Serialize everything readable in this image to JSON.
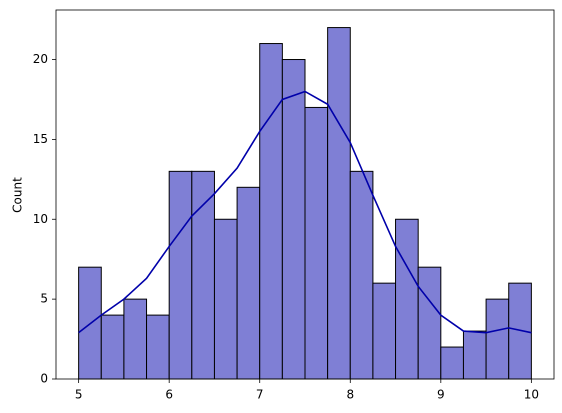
{
  "chart_data": {
    "type": "histogram",
    "y_label": "Count",
    "bins": [
      5.0,
      5.25,
      5.5,
      5.75,
      6.0,
      6.25,
      6.5,
      6.75,
      7.0,
      7.25,
      7.5,
      7.75,
      8.0,
      8.25,
      8.5,
      8.75,
      9.0,
      9.25,
      9.5,
      9.75,
      10.0
    ],
    "values": [
      7,
      4,
      5,
      4,
      13,
      13,
      10,
      12,
      21,
      20,
      17,
      22,
      13,
      6,
      10,
      7,
      2,
      3,
      5,
      6
    ],
    "color": "#7f7fd5",
    "edgecolor": "#000000",
    "kde": {
      "x": [
        5.0,
        5.25,
        5.5,
        5.75,
        6.0,
        6.25,
        6.5,
        6.75,
        7.0,
        7.25,
        7.5,
        7.75,
        8.0,
        8.25,
        8.5,
        8.75,
        9.0,
        9.25,
        9.5,
        9.75,
        10.0
      ],
      "values": [
        2.9,
        4.0,
        5.0,
        6.3,
        8.3,
        10.2,
        11.6,
        13.2,
        15.5,
        17.5,
        18.0,
        17.2,
        14.8,
        11.5,
        8.3,
        5.8,
        4.0,
        3.0,
        2.9,
        3.2,
        2.9
      ],
      "color": "#0000aa"
    },
    "xlim": [
      4.75,
      10.25
    ],
    "xticks": [
      5,
      6,
      7,
      8,
      9,
      10
    ],
    "ylim": [
      0,
      23.1
    ],
    "yticks": [
      0,
      5,
      10,
      15,
      20
    ]
  }
}
